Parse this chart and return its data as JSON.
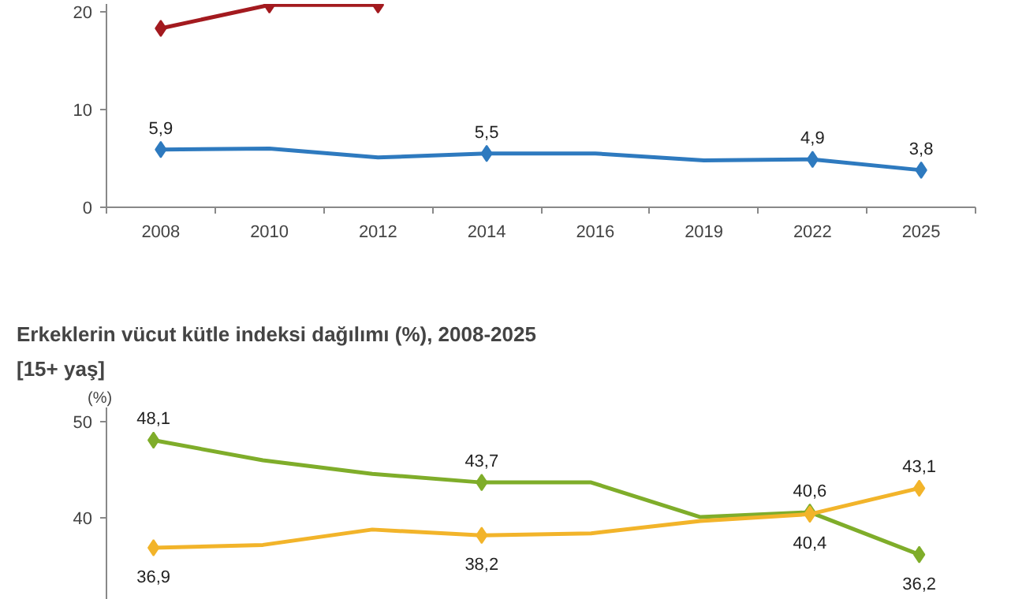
{
  "chart_data": [
    {
      "type": "line",
      "categories": [
        "2008",
        "2010",
        "2012",
        "2014",
        "2016",
        "2019",
        "2022",
        "2025"
      ],
      "ylim": [
        0,
        20.8
      ],
      "yticks": [
        0,
        10,
        20
      ],
      "marker": "diamond",
      "series": [
        {
          "color": "#a31a1f",
          "values": [
            18.3,
            20.7,
            20.7,
            null,
            null,
            null,
            null,
            null
          ]
        },
        {
          "color": "#2e7abf",
          "values": [
            5.9,
            6.0,
            5.1,
            5.5,
            5.5,
            4.8,
            4.9,
            3.8
          ],
          "value_labels": [
            "5,9",
            null,
            null,
            "5,5",
            null,
            null,
            "4,9",
            "3,8"
          ]
        }
      ]
    },
    {
      "type": "line",
      "title": "Erkeklerin vücut kütle indeksi dağılımı (%), 2008-2025",
      "subtitle": "[15+ yaş]",
      "ylabel": "(%)",
      "categories": [
        null,
        null,
        null,
        null,
        null,
        null,
        null,
        null
      ],
      "ylim": [
        31,
        51.5
      ],
      "yticks": [
        40,
        50
      ],
      "marker": "diamond",
      "tick_labels": "y",
      "series": [
        {
          "color": "#7fad2a",
          "values": [
            48.1,
            46.0,
            44.6,
            43.7,
            43.7,
            40.1,
            40.6,
            36.2
          ],
          "value_labels": [
            "48,1",
            null,
            null,
            "43,7",
            null,
            null,
            "40,6",
            "36,2"
          ]
        },
        {
          "color": "#f2b42a",
          "values": [
            36.9,
            37.2,
            38.8,
            38.2,
            38.4,
            39.7,
            40.4,
            43.1
          ],
          "value_labels": [
            "36,9",
            null,
            null,
            "38,2",
            null,
            null,
            "40,4",
            "43,1"
          ]
        }
      ]
    }
  ]
}
